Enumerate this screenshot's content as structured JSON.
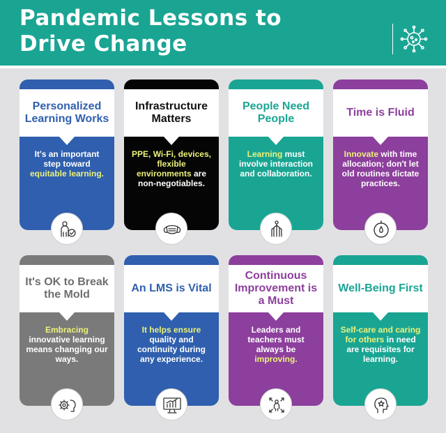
{
  "header": {
    "title_line1": "Pandemic Lessons to",
    "title_line2": "Drive Change",
    "icon": "virus-icon"
  },
  "colors": {
    "teal": "#1aa593",
    "blue": "#2f5fae",
    "black": "#050505",
    "purple": "#8c3f9c",
    "gray": "#7a7a7a",
    "highlight": "#ecf27a"
  },
  "cards": [
    {
      "title": "Personalized Learning Works",
      "body_1": "It's an important step toward ",
      "body_hl": "equitable learning.",
      "body_2": "",
      "icon": "person-check-icon"
    },
    {
      "title": "Infrastructure Matters",
      "body_hl": "PPE, Wi-Fi, devices, flexible environments",
      "body_2": " are non-negotiables.",
      "icon": "face-mask-icon"
    },
    {
      "title": "People Need People",
      "body_hl": "Learning",
      "body_2": " must involve interaction and collaboration.",
      "icon": "people-connected-icon"
    },
    {
      "title": "Time is Fluid",
      "body_hl": "Innovate",
      "body_2": " with time allocation; don't let old routines dictate practices.",
      "icon": "stopwatch-icon"
    },
    {
      "title": "It's OK to Break the Mold",
      "body_hl": "Embracing",
      "body_2": " innovative learning means changing our ways.",
      "icon": "gear-person-icon"
    },
    {
      "title": "An LMS is Vital",
      "body_hl": "It helps ensure",
      "body_2": " quality and continuity during any experience.",
      "icon": "monitor-chart-icon"
    },
    {
      "title": "Continuous Improvement is a Must",
      "body_1": "Leaders and teachers must always be ",
      "body_hl": "improving.",
      "body_2": "",
      "icon": "person-arrows-icon"
    },
    {
      "title": "Well-Being First",
      "body_hl": "Self-care and caring for others",
      "body_2": " in need are requisites for learning.",
      "icon": "head-star-icon"
    }
  ]
}
